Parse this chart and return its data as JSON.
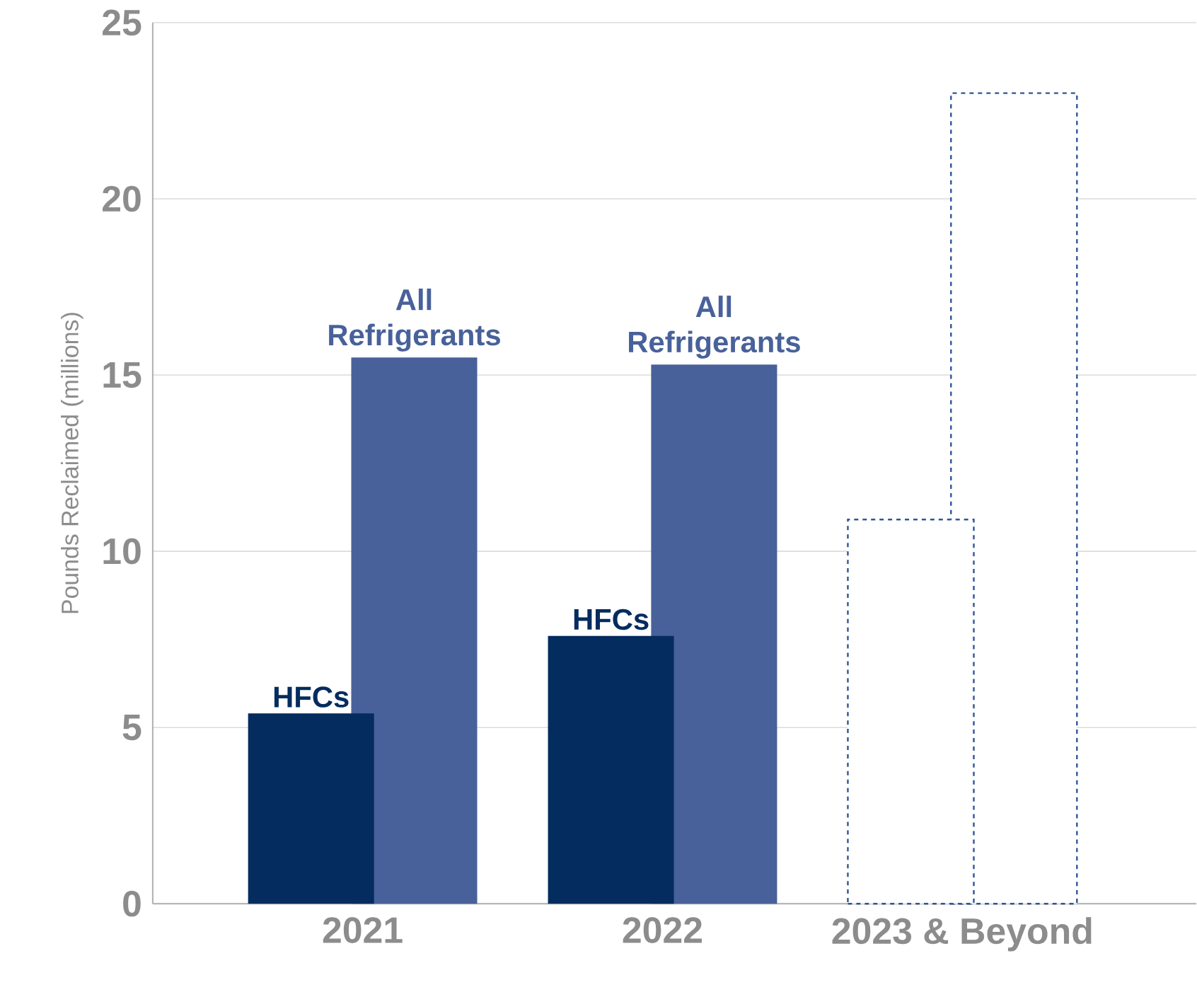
{
  "chart_data": {
    "type": "bar",
    "ylabel": "Pounds Reclaimed (millions)",
    "categories": [
      "2021",
      "2022",
      "2023 & Beyond"
    ],
    "series": [
      {
        "name": "HFCs",
        "color": "#052c5e",
        "values": [
          5.4,
          7.6,
          null
        ]
      },
      {
        "name": "All Refrigerants",
        "color": "#48619a",
        "values": [
          15.5,
          15.3,
          null
        ]
      },
      {
        "color": "#2f5597",
        "line_style": "dashed",
        "values": [
          null,
          null,
          10.9
        ]
      },
      {
        "color": "#2f5597",
        "line_style": "dashed",
        "values": [
          null,
          null,
          23.0
        ]
      }
    ],
    "ylim": [
      0,
      25
    ],
    "yticks": [
      0,
      5,
      10,
      15,
      20,
      25
    ],
    "grid": "y"
  }
}
